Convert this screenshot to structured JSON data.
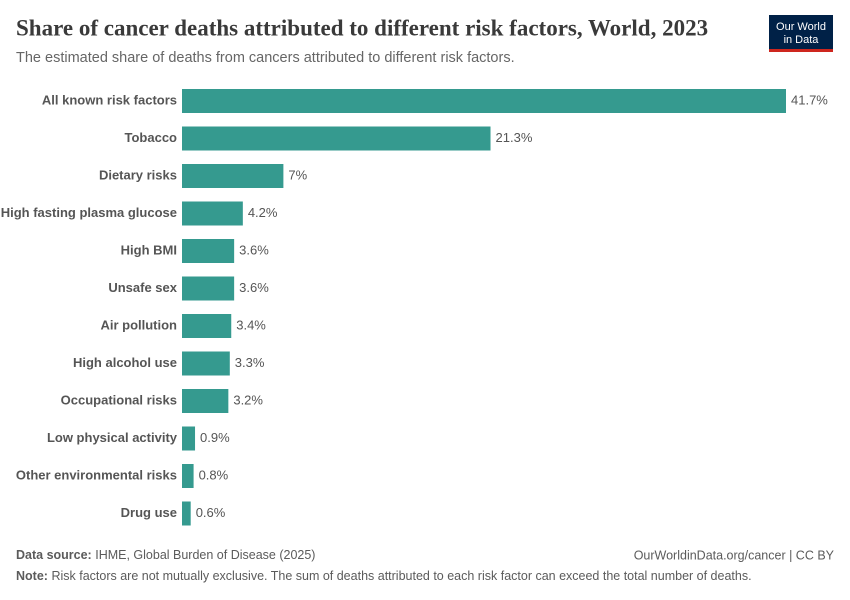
{
  "chart_data": {
    "type": "bar",
    "title": "Share of cancer deaths attributed to different risk factors, World, 2023",
    "subtitle": "The estimated share of deaths from cancers attributed to different risk factors.",
    "categories": [
      "All known risk factors",
      "Tobacco",
      "Dietary risks",
      "High fasting plasma glucose",
      "High BMI",
      "Unsafe sex",
      "Air pollution",
      "High alcohol use",
      "Occupational risks",
      "Low physical activity",
      "Other environmental risks",
      "Drug use"
    ],
    "values": [
      41.7,
      21.3,
      7,
      4.2,
      3.6,
      3.6,
      3.4,
      3.3,
      3.2,
      0.9,
      0.8,
      0.6
    ],
    "value_labels": [
      "41.7%",
      "21.3%",
      "7%",
      "4.2%",
      "3.6%",
      "3.6%",
      "3.4%",
      "3.3%",
      "3.2%",
      "0.9%",
      "0.8%",
      "0.6%"
    ],
    "color": "#359a8f",
    "orientation": "horizontal",
    "source_label": "Data source:",
    "source": "IHME, Global Burden of Disease (2025)",
    "url_license": "OurWorldinData.org/cancer | CC BY",
    "note_label": "Note:",
    "note": "Risk factors are not mutually exclusive. The sum of deaths attributed to each risk factor can exceed the total number of deaths.",
    "logo": [
      "Our World",
      "in Data"
    ]
  }
}
